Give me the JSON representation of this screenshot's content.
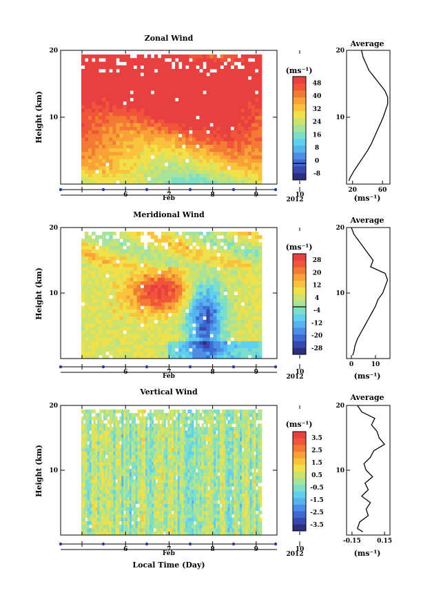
{
  "figure": {
    "xlabel": "Local Time (Day)",
    "month_label": "Feb",
    "year_label": "2012",
    "ylabel": "Height (km)",
    "units": "(ms⁻¹)",
    "average_title": "Average"
  },
  "palette": [
    "#2b2f80",
    "#3748ad",
    "#3c6ad2",
    "#4c8ee6",
    "#55b3f0",
    "#5fd0ee",
    "#7ce0c8",
    "#a8e39c",
    "#cde36b",
    "#f0e04a",
    "#f9c43c",
    "#f7a136",
    "#f27a33",
    "#f0553a",
    "#e8403e"
  ],
  "chart_data": [
    {
      "type": "heatmap",
      "title": "Zonal Wind",
      "x_ticks": [
        "6",
        "7",
        "8",
        "9",
        "10"
      ],
      "y_ticks": [
        "10",
        "20"
      ],
      "ylim": [
        0,
        20
      ],
      "colorbar_ticks": [
        "48",
        "40",
        "32",
        "24",
        "16",
        "8",
        "0",
        "-8"
      ],
      "colorbar_range": [
        -12,
        52
      ],
      "zero_line": 0,
      "profile": {
        "type": "line",
        "title": "Average",
        "xlabel": "(ms⁻¹)",
        "x_ticks": [
          "20",
          "60"
        ],
        "xlim": [
          12,
          70
        ],
        "ylim": [
          0,
          20
        ],
        "height": [
          0.5,
          1,
          2,
          3,
          4,
          5,
          6,
          7,
          8,
          9,
          10,
          11,
          12,
          13,
          14,
          15,
          16,
          17,
          18,
          19,
          20
        ],
        "values": [
          15,
          17,
          22,
          28,
          34,
          40,
          45,
          49,
          53,
          57,
          61,
          64,
          67,
          67,
          63,
          56,
          49,
          42,
          38,
          34,
          32
        ]
      }
    },
    {
      "type": "heatmap",
      "title": "Meridional Wind",
      "x_ticks": [
        "6",
        "7",
        "8",
        "9",
        "10"
      ],
      "y_ticks": [
        "10",
        "20"
      ],
      "ylim": [
        0,
        20
      ],
      "colorbar_ticks": [
        "28",
        "20",
        "12",
        "4",
        "-4",
        "-12",
        "-20",
        "-28"
      ],
      "colorbar_range": [
        -32,
        32
      ],
      "zero_line": 0,
      "profile": {
        "type": "line",
        "title": "Average",
        "xlabel": "(ms⁻¹)",
        "x_ticks": [
          "0",
          "10"
        ],
        "xlim": [
          -2,
          16
        ],
        "ylim": [
          0,
          20
        ],
        "height": [
          0.5,
          1,
          2,
          3,
          4,
          5,
          6,
          7,
          8,
          9,
          10,
          11,
          12,
          13,
          14,
          15,
          16,
          17,
          18,
          19,
          20
        ],
        "values": [
          0.5,
          1,
          1.5,
          2.5,
          4,
          5.5,
          7,
          8.5,
          10,
          11,
          13,
          14,
          15,
          14,
          8,
          9,
          7,
          5,
          3,
          1,
          0
        ]
      }
    },
    {
      "type": "heatmap",
      "title": "Vertical Wind",
      "x_ticks": [
        "6",
        "7",
        "8",
        "9",
        "10"
      ],
      "y_ticks": [
        "10",
        "20"
      ],
      "ylim": [
        0,
        20
      ],
      "colorbar_ticks": [
        "3.5",
        "2.5",
        "1.5",
        "0.5",
        "-0.5",
        "-1.5",
        "-2.5",
        "-3.5"
      ],
      "colorbar_range": [
        -4,
        4
      ],
      "zero_line": null,
      "profile": {
        "type": "line",
        "title": "Average",
        "xlabel": "(ms⁻¹)",
        "x_ticks": [
          "-0.15",
          "0.15"
        ],
        "xlim": [
          -0.2,
          0.2
        ],
        "ylim": [
          0,
          20
        ],
        "height": [
          0.5,
          1,
          2,
          3,
          4,
          5,
          6,
          7,
          8,
          9,
          10,
          11,
          12,
          13,
          14,
          15,
          16,
          17,
          18,
          19,
          20
        ],
        "values": [
          -0.05,
          -0.1,
          -0.08,
          0,
          -0.02,
          0.02,
          -0.06,
          0,
          -0.03,
          0.04,
          -0.02,
          -0.04,
          0.02,
          0.05,
          0.15,
          0.1,
          0.08,
          0.03,
          0.06,
          -0.06,
          -0.1
        ]
      }
    }
  ]
}
